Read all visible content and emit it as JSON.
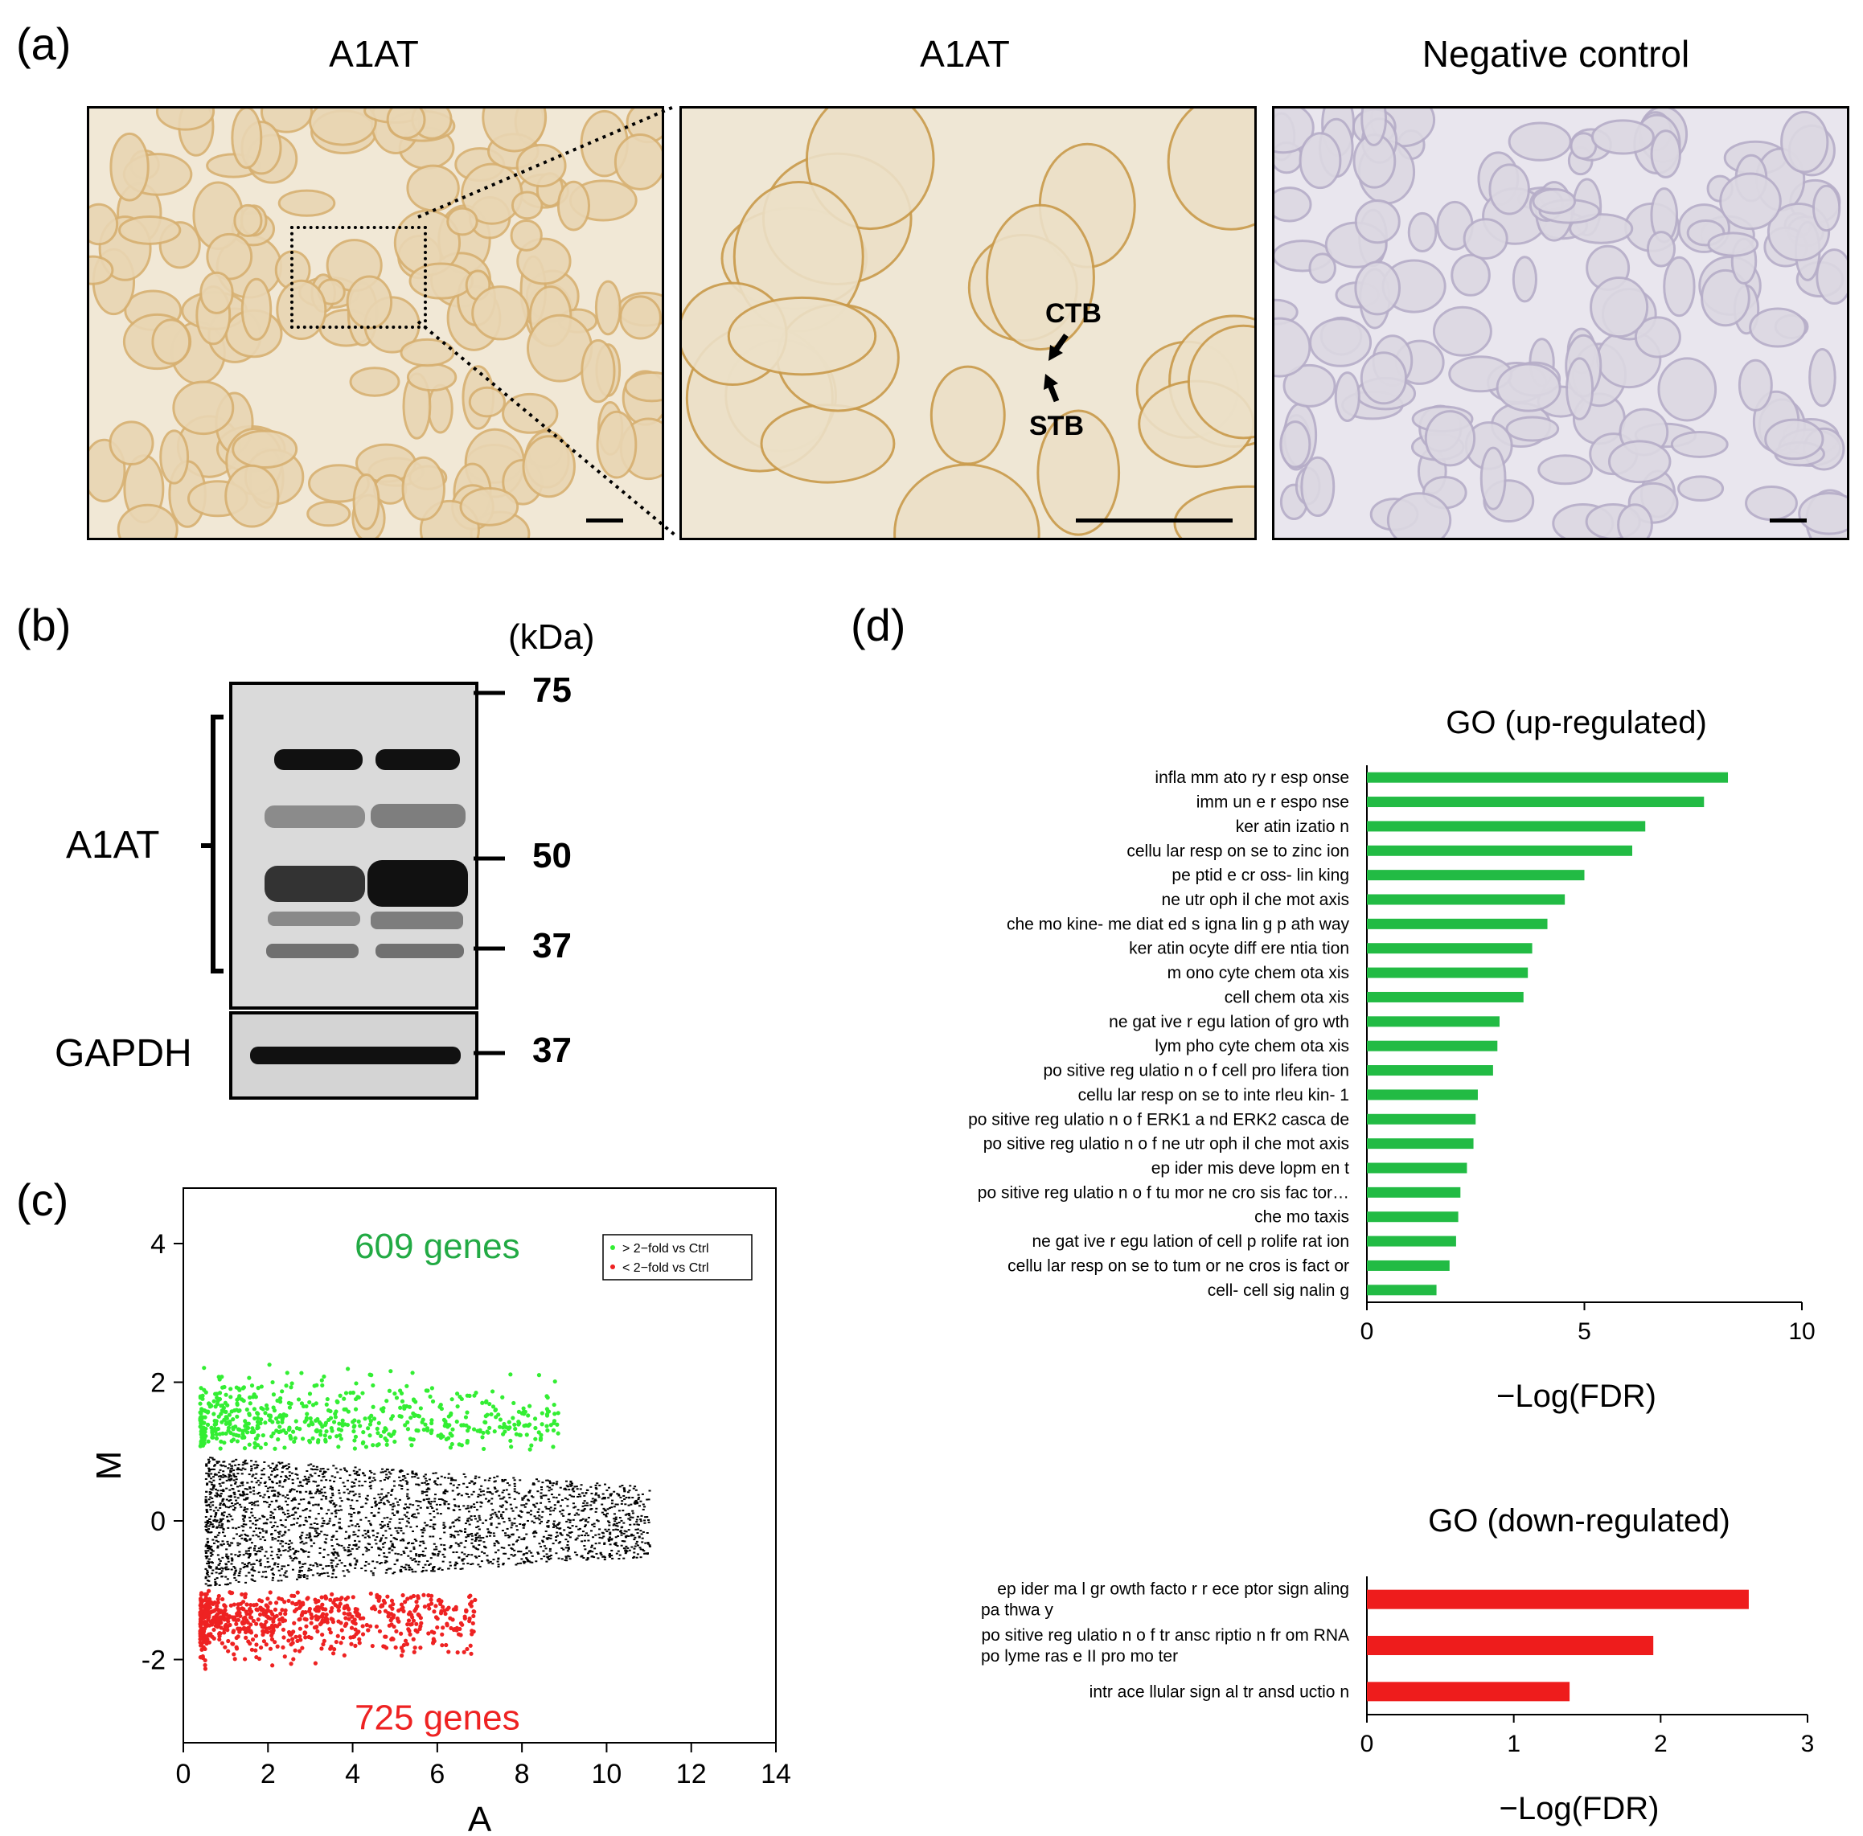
{
  "panel_a": {
    "label": "(a)",
    "titles": [
      "A1AT",
      "A1AT",
      "Negative control"
    ],
    "annotations": {
      "ctb": "CTB",
      "stb": "STB"
    }
  },
  "panel_b": {
    "label": "(b)",
    "unit": "(kDa)",
    "bands": {
      "a1at": "A1AT",
      "gapdh": "GAPDH"
    },
    "markers": [
      "75",
      "50",
      "37",
      "37"
    ]
  },
  "panel_c": {
    "label": "(c)"
  },
  "panel_d": {
    "label": "(d)"
  },
  "colors": {
    "up": "#22bb44",
    "down": "#ee1c1c",
    "ma_up": "#33ee33",
    "ma_down": "#ee2222"
  },
  "chart_data": [
    {
      "type": "scatter",
      "xlabel": "A",
      "ylabel": "M",
      "xlim": [
        0,
        14
      ],
      "ylim": [
        -3.2,
        4.8
      ],
      "xticks": [
        0,
        2,
        4,
        6,
        8,
        10,
        12,
        14
      ],
      "yticks": [
        -2,
        0,
        2,
        4
      ],
      "legend": [
        "> 2−fold vs Ctrl",
        "< 2−fold vs Ctrl"
      ],
      "legend_position": "top-right",
      "annotations": {
        "up": "609 genes",
        "down": "725 genes"
      },
      "series": [
        {
          "name": "> 2−fold vs Ctrl",
          "count": 609,
          "color": "#33ee33"
        },
        {
          "name": "< 2−fold vs Ctrl",
          "count": 725,
          "color": "#ee2222"
        }
      ]
    },
    {
      "type": "bar",
      "orientation": "horizontal",
      "title": "GO (up-regulated)",
      "xlabel": "−Log(FDR)",
      "xlim": [
        0,
        10
      ],
      "xticks": [
        0,
        5,
        10
      ],
      "categories": [
        "infla mm ato ry r esp onse",
        "imm un e r espo nse",
        "ker atin izatio n",
        "cellu lar resp on se to  zinc  ion",
        "pe ptid e cr oss- lin king",
        "ne utr oph il che mot axis",
        "che mo kine- me diat ed s igna lin g p ath way",
        "ker atin ocyte  diff ere ntia tion",
        "m ono cyte  chem ota xis",
        "cell  chem ota xis",
        "ne gat ive r egu lation  of  gro wth",
        "lym pho cyte  chem ota xis",
        "po sitive  reg ulatio n o f cell  pro lifera tion",
        "cellu lar resp on se to  inte rleu kin- 1",
        "po sitive  reg ulatio n o f ERK1 a nd ERK2  casca de",
        "po sitive  reg ulatio n o f ne utr oph il che mot axis",
        "ep ider mis  deve lopm en t",
        "po sitive  reg ulatio n o f tu mor  ne cro sis fac tor…",
        "che mo taxis",
        "ne gat ive r egu lation  of  cell  p rolife rat ion",
        "cellu lar resp on se to  tum or  ne cros is  fact or",
        "cell- cell sig nalin g"
      ],
      "values": [
        8.3,
        7.75,
        6.4,
        6.1,
        5.0,
        4.55,
        4.15,
        3.8,
        3.7,
        3.6,
        3.05,
        3.0,
        2.9,
        2.55,
        2.5,
        2.45,
        2.3,
        2.15,
        2.1,
        2.05,
        1.9,
        1.6
      ],
      "color": "#22bb44"
    },
    {
      "type": "bar",
      "orientation": "horizontal",
      "title": "GO (down-regulated)",
      "xlabel": "−Log(FDR)",
      "xlim": [
        0,
        3
      ],
      "xticks": [
        0,
        1,
        2,
        3
      ],
      "categories": [
        [
          "ep ider ma l gr owth  facto r r ece ptor  sign aling",
          "pa thwa y"
        ],
        [
          "po sitive  reg ulatio n o f tr ansc riptio n fr om  RNA",
          "po lyme ras e II  pro mo ter"
        ],
        [
          "intr ace llular  sign al tr ansd uctio n"
        ]
      ],
      "values": [
        2.6,
        1.95,
        1.38
      ],
      "color": "#ee1c1c"
    }
  ]
}
